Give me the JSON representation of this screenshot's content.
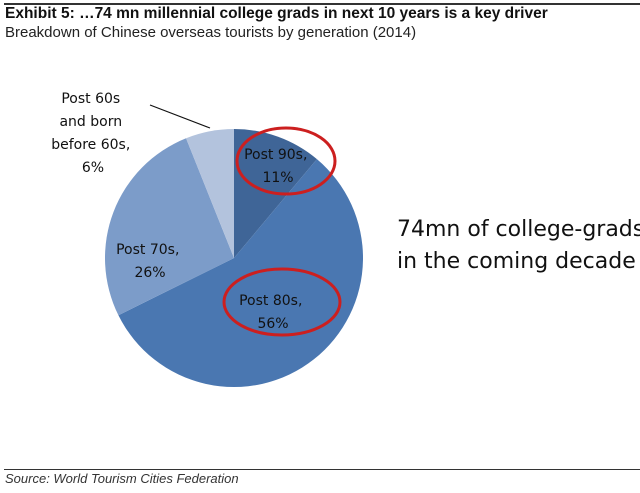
{
  "header": {
    "title": "Exhibit 5:  …74 mn millennial college grads in next 10 years is a key driver",
    "subtitle": "Breakdown of Chinese overseas tourists by generation (2014)"
  },
  "chart_data": {
    "type": "pie",
    "title": "Breakdown of Chinese overseas tourists by generation (2014)",
    "start_angle": "12 o'clock, clockwise",
    "slices": [
      {
        "label": "Post 90s,",
        "pct": "11%",
        "value": 11,
        "color": "#3f6597",
        "highlighted": true
      },
      {
        "label": "Post 80s,",
        "pct": "56%",
        "value": 56,
        "color": "#4a77b1",
        "highlighted": true
      },
      {
        "label": "Post 70s,",
        "pct": "26%",
        "value": 26,
        "color": "#7c9cc9",
        "highlighted": false
      },
      {
        "label_lines": [
          "Post 60s",
          "and born",
          "before 60s,"
        ],
        "pct": "6%",
        "value": 6,
        "color": "#b3c3dd",
        "highlighted": false
      }
    ],
    "highlight_color": "#cc1f1f",
    "annotation": [
      "74mn of college-grads",
      "in the coming decade"
    ]
  },
  "footer": {
    "source": "Source: World Tourism Cities Federation"
  }
}
